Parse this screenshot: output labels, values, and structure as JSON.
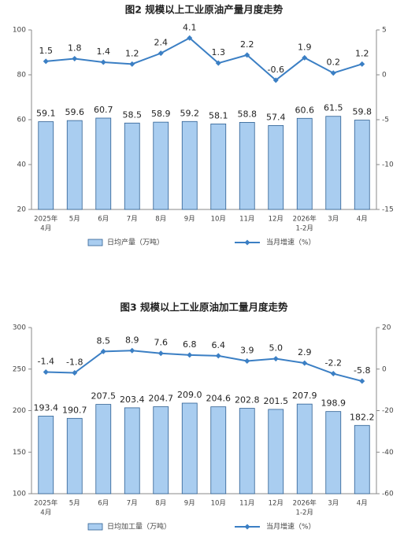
{
  "chart_data": [
    {
      "type": "bar-line",
      "title": "图2 规模以上工业原油产量月度走势",
      "categories": [
        [
          "2025年",
          "4月"
        ],
        "5月",
        "6月",
        "7月",
        "8月",
        "9月",
        "10月",
        "11月",
        "12月",
        [
          "2026年",
          "1-2月"
        ],
        "3月",
        "4月"
      ],
      "series": [
        {
          "name": "日均产量（万吨）",
          "color": "#a9cdf0",
          "values": [
            59.1,
            59.6,
            60.7,
            58.5,
            58.9,
            59.2,
            58.1,
            58.8,
            57.4,
            60.6,
            61.5,
            59.8
          ]
        },
        {
          "name": "当月增速（%）",
          "color": "#3b7fc4",
          "axis": "y2",
          "values": [
            1.5,
            1.8,
            1.4,
            1.2,
            2.4,
            4.1,
            1.3,
            2.2,
            -0.6,
            1.9,
            0.2,
            1.2
          ]
        }
      ],
      "ylim": [
        20,
        100
      ],
      "yticks": [
        20,
        40,
        60,
        80,
        100
      ],
      "y2lim": [
        -15,
        5
      ],
      "y2ticks": [
        -15,
        -10,
        -5,
        0,
        5
      ]
    },
    {
      "type": "bar-line",
      "title": "图3 规模以上工业原油加工量月度走势",
      "categories": [
        [
          "2025年",
          "4月"
        ],
        "5月",
        "6月",
        "7月",
        "8月",
        "9月",
        "10月",
        "11月",
        "12月",
        [
          "2026年",
          "1-2月"
        ],
        "3月",
        "4月"
      ],
      "series": [
        {
          "name": "日均加工量（万吨）",
          "color": "#a9cdf0",
          "values": [
            193.4,
            190.7,
            207.5,
            203.4,
            204.7,
            209,
            204.6,
            202.8,
            201.5,
            207.9,
            198.9,
            182.2
          ],
          "value_labels": [
            "193.4",
            "190.7",
            "207.5",
            "203.4",
            "204.7",
            "209.0",
            "204.6",
            "202.8",
            "201.5",
            "207.9",
            "198.9",
            "182.2"
          ]
        },
        {
          "name": "当月增速（%）",
          "color": "#3b7fc4",
          "axis": "y2",
          "values": [
            -1.4,
            -1.8,
            8.5,
            8.9,
            7.6,
            6.8,
            6.4,
            3.9,
            5,
            2.9,
            -2.2,
            -5.8
          ],
          "value_labels": [
            "-1.4",
            "-1.8",
            "8.5",
            "8.9",
            "7.6",
            "6.8",
            "6.4",
            "3.9",
            "5.0",
            "2.9",
            "-2.2",
            "-5.8"
          ]
        }
      ],
      "ylim": [
        100,
        300
      ],
      "yticks": [
        100,
        150,
        200,
        250,
        300
      ],
      "y2lim": [
        -60,
        20
      ],
      "y2ticks": [
        -60,
        -40,
        -20,
        0,
        20
      ]
    }
  ]
}
